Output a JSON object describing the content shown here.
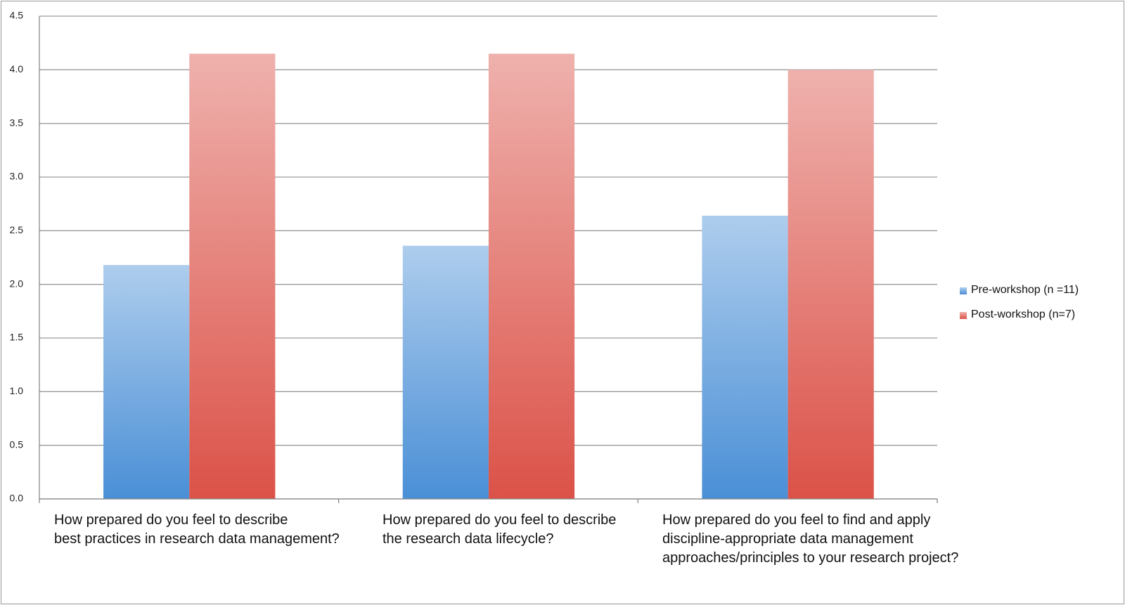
{
  "chart_data": {
    "type": "bar",
    "categories": [
      "How prepared do you feel to describe\nbest practices in research data management?",
      "How prepared do you feel to describe\nthe research data lifecycle?",
      "How prepared do you feel to find and apply\ndiscipline-appropriate data management\napproaches/principles to your research project?"
    ],
    "series": [
      {
        "name": "Pre-workshop (n =11)",
        "color": "#4a8fd6",
        "values": [
          2.18,
          2.36,
          2.64
        ]
      },
      {
        "name": "Post-workshop (n=7)",
        "color": "#db5248",
        "values": [
          4.15,
          4.15,
          4.0
        ]
      }
    ],
    "ylim": [
      0,
      4.5
    ],
    "yticks": [
      {
        "value": 0,
        "label": "0.0"
      },
      0.5,
      {
        "value": 1,
        "label": "1.0"
      },
      1.5,
      {
        "value": 2,
        "label": "2.0"
      },
      2.5,
      {
        "value": 3,
        "label": "3.0"
      },
      3.5,
      {
        "value": 4,
        "label": "4.0"
      },
      4.5
    ],
    "grid": true,
    "legend": "right"
  }
}
